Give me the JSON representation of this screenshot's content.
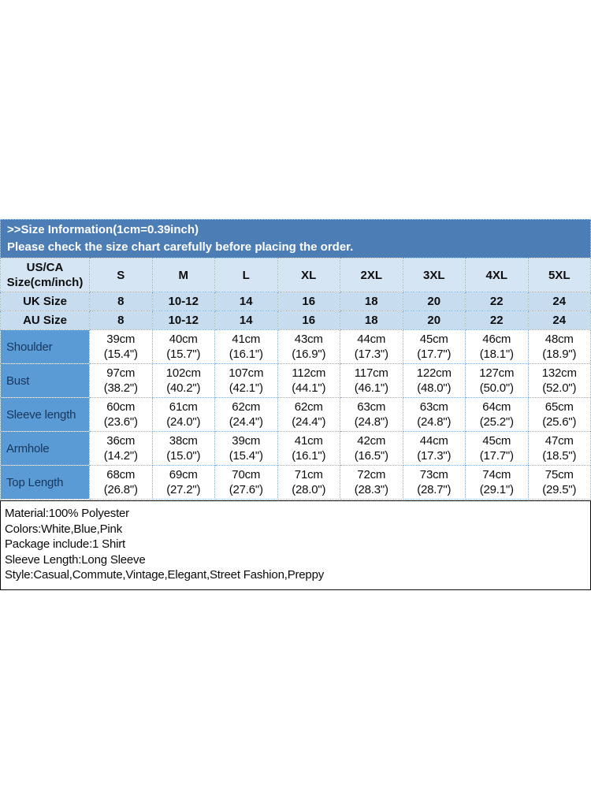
{
  "banner": {
    "line1": ">>Size Information(1cm=0.39inch)",
    "line2": "Please check the size chart carefully before placing the order."
  },
  "table": {
    "corner": {
      "line1": "US/CA",
      "line2": "Size(cm/inch)"
    },
    "sizes": [
      "S",
      "M",
      "L",
      "XL",
      "2XL",
      "3XL",
      "4XL",
      "5XL"
    ],
    "uk": {
      "label": "UK Size",
      "values": [
        "8",
        "10-12",
        "14",
        "16",
        "18",
        "20",
        "22",
        "24"
      ]
    },
    "au": {
      "label": "AU Size",
      "values": [
        "8",
        "10-12",
        "14",
        "16",
        "18",
        "20",
        "22",
        "24"
      ]
    },
    "rows": [
      {
        "label": "Shoulder",
        "cm": [
          "39cm",
          "40cm",
          "41cm",
          "43cm",
          "44cm",
          "45cm",
          "46cm",
          "48cm"
        ],
        "inch": [
          "(15.4\")",
          "(15.7\")",
          "(16.1\")",
          "(16.9\")",
          "(17.3\")",
          "(17.7\")",
          "(18.1\")",
          "(18.9\")"
        ]
      },
      {
        "label": "Bust",
        "cm": [
          "97cm",
          "102cm",
          "107cm",
          "112cm",
          "117cm",
          "122cm",
          "127cm",
          "132cm"
        ],
        "inch": [
          "(38.2\")",
          "(40.2\")",
          "(42.1\")",
          "(44.1\")",
          "(46.1\")",
          "(48.0\")",
          "(50.0\")",
          "(52.0\")"
        ]
      },
      {
        "label": "Sleeve length",
        "cm": [
          "60cm",
          "61cm",
          "62cm",
          "62cm",
          "63cm",
          "63cm",
          "64cm",
          "65cm"
        ],
        "inch": [
          "(23.6\")",
          "(24.0\")",
          "(24.4\")",
          "(24.4\")",
          "(24.8\")",
          "(24.8\")",
          "(25.2\")",
          "(25.6\")"
        ]
      },
      {
        "label": "Armhole",
        "cm": [
          "36cm",
          "38cm",
          "39cm",
          "41cm",
          "42cm",
          "44cm",
          "45cm",
          "47cm"
        ],
        "inch": [
          "(14.2\")",
          "(15.0\")",
          "(15.4\")",
          "(16.1\")",
          "(16.5\")",
          "(17.3\")",
          "(17.7\")",
          "(18.5\")"
        ]
      },
      {
        "label": "Top Length",
        "cm": [
          "68cm",
          "69cm",
          "70cm",
          "71cm",
          "72cm",
          "73cm",
          "74cm",
          "75cm"
        ],
        "inch": [
          "(26.8\")",
          "(27.2\")",
          "(27.6\")",
          "(28.0\")",
          "(28.3\")",
          "(28.7\")",
          "(29.1\")",
          "(29.5\")"
        ]
      }
    ]
  },
  "details": {
    "lines": [
      "Material:100% Polyester",
      "Colors:White,Blue,Pink",
      "Package include:1 Shirt",
      "Sleeve Length:Long Sleeve",
      "Style:Casual,Commute,Vintage,Elegant,Street Fashion,Preppy"
    ]
  },
  "colors": {
    "banner_bg": "#4C7DB4",
    "header_row_bg": "#D5E5F4",
    "size_rows_bg": "#C8DCF0",
    "label_column_bg": "#5B9BD5",
    "label_text": "#17375E",
    "cell_border": "#85AFD4",
    "details_border": "#0A0A0A"
  }
}
